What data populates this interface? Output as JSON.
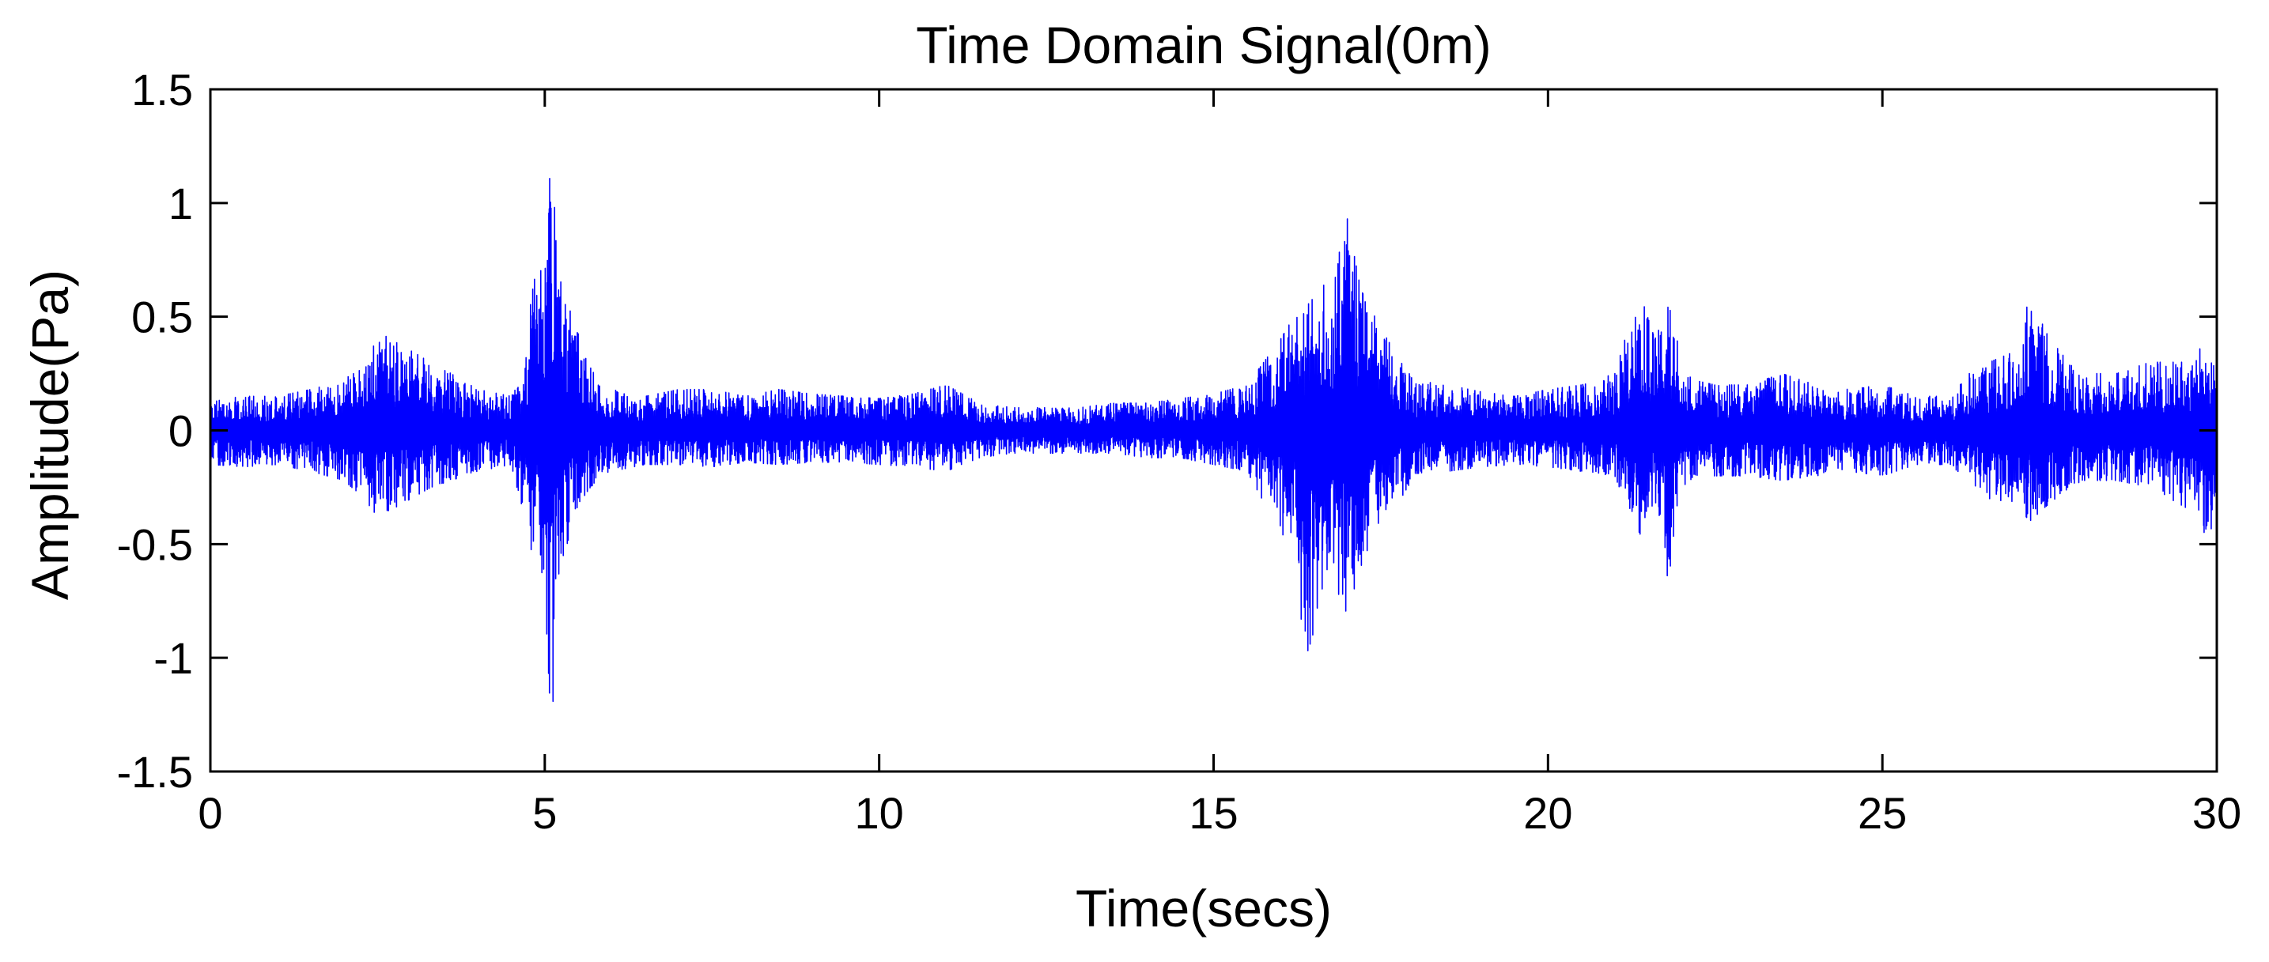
{
  "chart_data": {
    "type": "line",
    "title": "Time Domain Signal(0m)",
    "xlabel": "Time(secs)",
    "ylabel": "Amplitude(Pa)",
    "xlim": [
      0,
      30
    ],
    "ylim": [
      -1.5,
      1.5
    ],
    "xticks": [
      0,
      5,
      10,
      15,
      20,
      25,
      30
    ],
    "xtick_labels": [
      "0",
      "5",
      "10",
      "15",
      "20",
      "25",
      "30"
    ],
    "yticks": [
      1.5,
      1,
      0.5,
      0,
      -0.5,
      -1,
      -1.5
    ],
    "ytick_labels": [
      "1.5",
      "1",
      "0.5",
      "0",
      "-0.5",
      "-1",
      "-1.5"
    ],
    "grid": false,
    "line_color": "#0000ff",
    "series": [
      {
        "envelope": {
          "x": [
            0,
            0.5,
            1,
            1.5,
            2,
            2.3,
            2.5,
            2.7,
            3,
            3.3,
            3.6,
            4,
            4.5,
            4.7,
            4.8,
            4.9,
            5.0,
            5.1,
            5.2,
            5.4,
            5.6,
            5.8,
            6,
            6.5,
            7,
            7.5,
            8,
            8.5,
            9,
            9.5,
            10,
            10.5,
            11,
            11.5,
            12,
            12.5,
            13,
            13.5,
            14,
            14.5,
            15,
            15.5,
            16,
            16.2,
            16.4,
            16.6,
            16.8,
            17,
            17.2,
            17.5,
            17.8,
            18,
            18.5,
            19,
            19.5,
            20,
            20.5,
            21,
            21.2,
            21.4,
            21.6,
            21.8,
            22,
            22.2,
            22.5,
            23,
            23.5,
            24,
            24.5,
            25,
            25.5,
            26,
            26.3,
            26.6,
            27,
            27.2,
            27.5,
            27.8,
            28,
            28.5,
            29,
            29.3,
            29.6,
            29.8,
            30
          ],
          "upper": [
            0.14,
            0.15,
            0.15,
            0.18,
            0.22,
            0.3,
            0.5,
            0.4,
            0.35,
            0.3,
            0.25,
            0.18,
            0.15,
            0.25,
            0.6,
            0.75,
            0.8,
            1.22,
            0.75,
            0.5,
            0.35,
            0.2,
            0.18,
            0.15,
            0.18,
            0.18,
            0.15,
            0.18,
            0.16,
            0.15,
            0.14,
            0.16,
            0.2,
            0.12,
            0.1,
            0.1,
            0.1,
            0.12,
            0.12,
            0.14,
            0.16,
            0.2,
            0.4,
            0.5,
            0.55,
            0.62,
            0.7,
            0.93,
            0.62,
            0.45,
            0.3,
            0.22,
            0.2,
            0.17,
            0.15,
            0.18,
            0.2,
            0.25,
            0.45,
            0.58,
            0.4,
            0.58,
            0.3,
            0.22,
            0.2,
            0.2,
            0.25,
            0.2,
            0.18,
            0.2,
            0.15,
            0.15,
            0.25,
            0.3,
            0.35,
            0.59,
            0.4,
            0.3,
            0.25,
            0.25,
            0.3,
            0.3,
            0.3,
            0.38,
            0.38
          ],
          "lower": [
            -0.15,
            -0.16,
            -0.15,
            -0.18,
            -0.22,
            -0.3,
            -0.38,
            -0.35,
            -0.3,
            -0.25,
            -0.22,
            -0.18,
            -0.15,
            -0.4,
            -0.55,
            -0.6,
            -0.7,
            -1.35,
            -0.7,
            -0.45,
            -0.3,
            -0.2,
            -0.18,
            -0.15,
            -0.15,
            -0.16,
            -0.14,
            -0.15,
            -0.14,
            -0.14,
            -0.15,
            -0.16,
            -0.18,
            -0.12,
            -0.1,
            -0.1,
            -0.1,
            -0.1,
            -0.12,
            -0.12,
            -0.15,
            -0.18,
            -0.45,
            -0.5,
            -1.1,
            -0.7,
            -0.75,
            -0.8,
            -0.6,
            -0.4,
            -0.3,
            -0.2,
            -0.18,
            -0.16,
            -0.15,
            -0.16,
            -0.18,
            -0.2,
            -0.35,
            -0.47,
            -0.3,
            -0.67,
            -0.25,
            -0.2,
            -0.2,
            -0.2,
            -0.22,
            -0.2,
            -0.18,
            -0.2,
            -0.15,
            -0.15,
            -0.22,
            -0.3,
            -0.32,
            -0.4,
            -0.32,
            -0.25,
            -0.22,
            -0.22,
            -0.25,
            -0.3,
            -0.35,
            -0.45,
            -0.42
          ]
        }
      }
    ]
  }
}
